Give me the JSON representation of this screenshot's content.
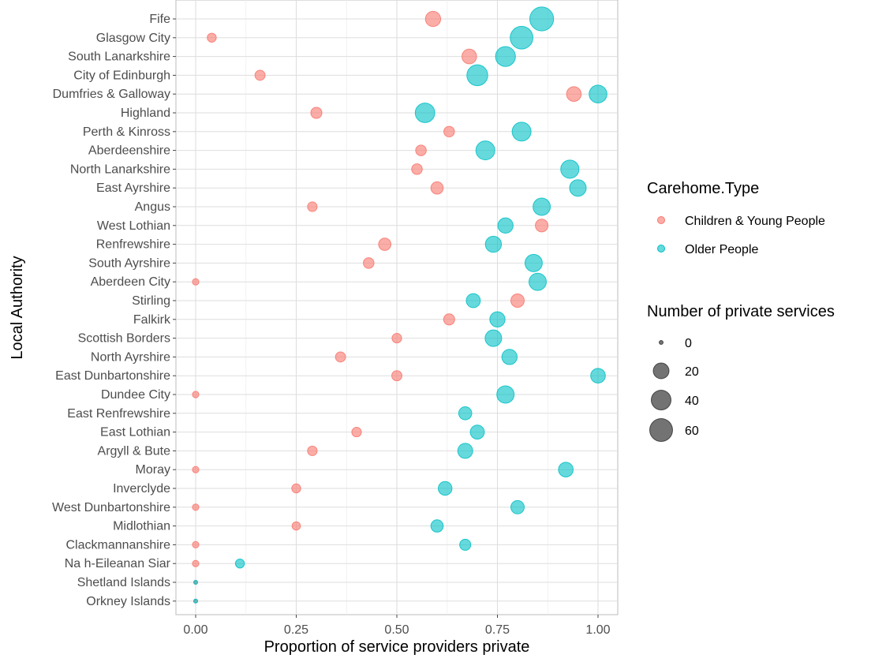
{
  "chart_data": {
    "type": "scatter",
    "xlabel": "Proportion of service providers private",
    "ylabel": "Local Authority",
    "xlim": [
      0,
      1
    ],
    "x_ticks": [
      "0.00",
      "0.25",
      "0.50",
      "0.75",
      "1.00"
    ],
    "x_tick_values": [
      0,
      0.25,
      0.5,
      0.75,
      1.0
    ],
    "grid": true,
    "legend_position": "right",
    "categories": [
      "Fife",
      "Glasgow City",
      "South Lanarkshire",
      "City of Edinburgh",
      "Dumfries & Galloway",
      "Highland",
      "Perth & Kinross",
      "Aberdeenshire",
      "North Lanarkshire",
      "East Ayrshire",
      "Angus",
      "West Lothian",
      "Renfrewshire",
      "South Ayrshire",
      "Aberdeen City",
      "Stirling",
      "Falkirk",
      "Scottish Borders",
      "North Ayrshire",
      "East Dunbartonshire",
      "Dundee City",
      "East Renfrewshire",
      "East Lothian",
      "Argyll & Bute",
      "Moray",
      "Inverclyde",
      "West Dunbartonshire",
      "Midlothian",
      "Clackmannanshire",
      "Na h-Eileanan Siar",
      "Shetland Islands",
      "Orkney Islands"
    ],
    "color_legend": {
      "title": "Carehome.Type",
      "entries": [
        "Children & Young People",
        "Older People"
      ]
    },
    "size_legend": {
      "title": "Number of private services",
      "labels": [
        "0",
        "20",
        "40",
        "60"
      ],
      "values": [
        0,
        20,
        40,
        60
      ]
    },
    "series": [
      {
        "name": "Children & Young People",
        "color": "#F8766D",
        "x": [
          0.59,
          0.04,
          0.68,
          0.16,
          0.94,
          0.3,
          0.63,
          0.56,
          0.55,
          0.6,
          0.29,
          0.86,
          0.47,
          0.43,
          0.0,
          0.8,
          0.63,
          0.5,
          0.36,
          0.5,
          0.0,
          null,
          0.4,
          0.29,
          0.0,
          0.25,
          0.0,
          0.25,
          0.0,
          0.0,
          0.0,
          0.0
        ],
        "size": [
          20,
          4,
          18,
          6,
          18,
          8,
          7,
          7,
          7,
          11,
          5,
          12,
          11,
          7,
          1,
          14,
          8,
          5,
          6,
          6,
          1,
          null,
          5,
          5,
          1,
          4,
          1,
          3,
          1,
          1,
          0,
          0
        ]
      },
      {
        "name": "Older People",
        "color": "#00BFC4",
        "x": [
          0.86,
          0.81,
          0.77,
          0.7,
          1.0,
          0.57,
          0.81,
          0.72,
          0.93,
          0.95,
          0.86,
          0.77,
          0.74,
          0.84,
          0.85,
          0.69,
          0.75,
          0.74,
          0.78,
          1.0,
          0.77,
          0.67,
          0.7,
          0.67,
          0.92,
          0.62,
          0.8,
          0.6,
          0.67,
          0.11,
          0.0,
          0.0
        ],
        "size": [
          62,
          55,
          40,
          45,
          30,
          38,
          35,
          35,
          32,
          25,
          28,
          20,
          23,
          28,
          28,
          16,
          20,
          25,
          20,
          18,
          28,
          13,
          16,
          19,
          18,
          15,
          14,
          11,
          8,
          4,
          0,
          0
        ]
      }
    ]
  }
}
